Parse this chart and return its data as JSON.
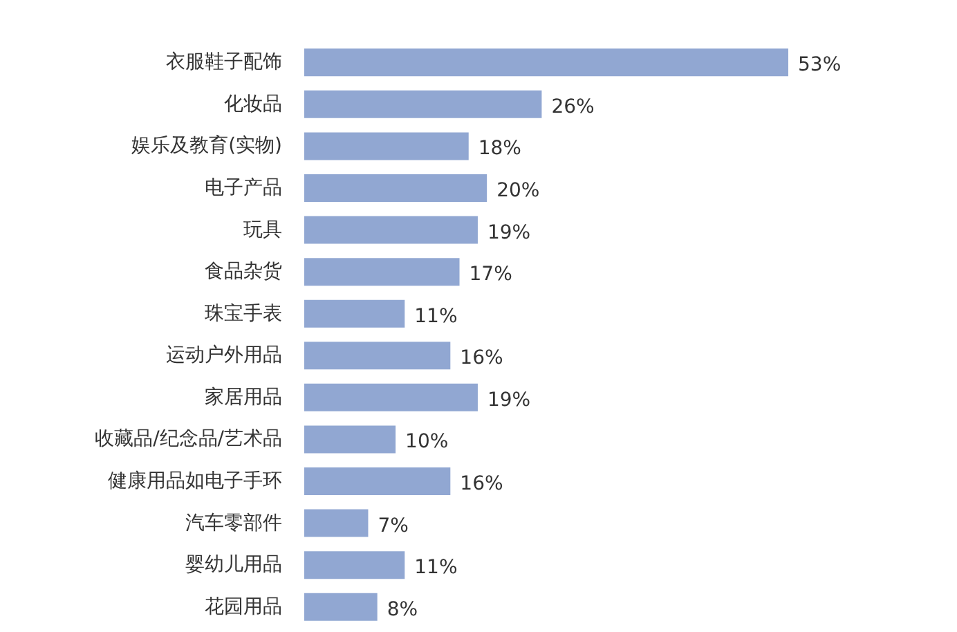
{
  "chart_data": {
    "type": "bar",
    "orientation": "horizontal",
    "categories": [
      "衣服鞋子配饰",
      "化妆品",
      "娱乐及教育(实物)",
      "电子产品",
      "玩具",
      "食品杂货",
      "珠宝手表",
      "运动户外用品",
      "家居用品",
      "收藏品/纪念品/艺术品",
      "健康用品如电子手环",
      "汽车零部件",
      "婴幼儿用品",
      "花园用品"
    ],
    "values": [
      53,
      26,
      18,
      20,
      19,
      17,
      11,
      16,
      19,
      10,
      16,
      7,
      11,
      8
    ],
    "value_labels": [
      "53%",
      "26%",
      "18%",
      "20%",
      "19%",
      "17%",
      "11%",
      "16%",
      "19%",
      "10%",
      "16%",
      "7%",
      "11%",
      "8%"
    ],
    "color": "#91a7d2",
    "tick_labels": "y"
  }
}
